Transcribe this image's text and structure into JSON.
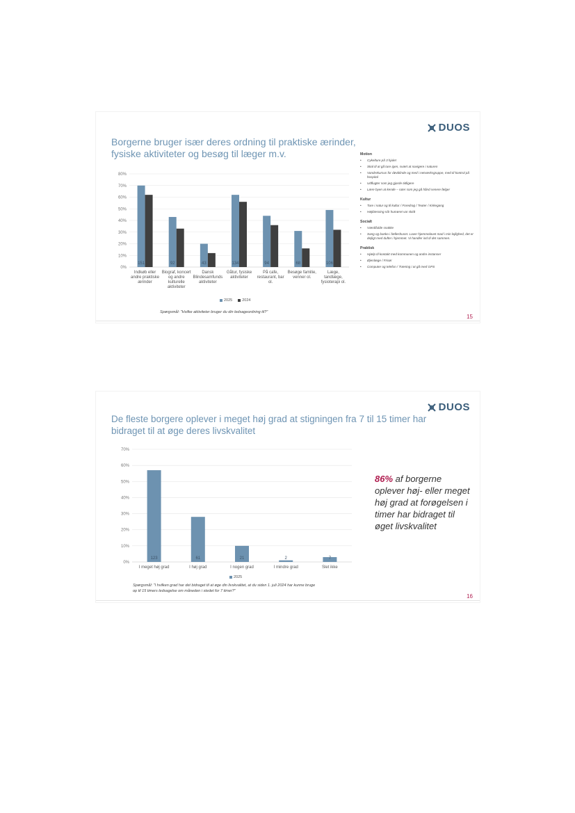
{
  "slide1": {
    "brand": "DUOS",
    "title_lines": [
      "Borgerne bruger især deres ordning til praktiske ærinder,",
      "fysiske aktiviteter og besøg til læger m.v."
    ],
    "question": "Spørgsmål: \"Hvilke aktiviteter bruger du din ledsageordning til?\"",
    "page_number": "15",
    "legend": [
      "2025",
      "2024"
    ],
    "sidebar": [
      {
        "title": "Motion",
        "items": [
          "Cykelture på 3 hjulet",
          "Skal til at gå ture igen, svært at navigere i naturen",
          "Vandrekursus for døvblinde og med i netværksgruppe, med til kontrol på hospital",
          "Udflugter som jeg gjorde tidligere",
          "Lære byen at kende – ruter som jeg gå hånd senere følger"
        ]
      },
      {
        "title": "Kultur",
        "items": [
          "Ture i natur og til kultur / Foredrag / Teater / Kirkegang",
          "Højtlæsning når humøret var skidt"
        ]
      },
      {
        "title": "Socialt",
        "items": [
          "Værdifulde snakke",
          "Sang og banko i fælleshuset. Laver hjemmelavet mad i min lejlighed, det er dejligt med dufter i hjemmet. Vi handler ind til det sammen."
        ]
      },
      {
        "title": "Praktisk",
        "items": [
          "Hjælp til kontakt med kommunen og andre instanser",
          "Øjenlæge / Frisør",
          "Computer og telefon / Træning i at gå med GPS"
        ]
      }
    ]
  },
  "slide2": {
    "brand": "DUOS",
    "title_lines": [
      "De fleste borgere oplever i meget høj grad at stigningen fra 7 til 15 timer har",
      "bidraget til at øge deres livskvalitet"
    ],
    "highlight_pct": "86%",
    "highlight_text": " af borgerne oplever høj- eller meget høj grad at forøgelsen i timer har bidraget til øget livskvalitet",
    "question_lines": [
      "Spørgsmål: \"I hvilken grad har det bidraget til at øge din livskvalitet, at du siden 1. juli 2024 har kunne bruge",
      "op til 15 timers ledsagelse om måneden i stedet for 7 timer?\""
    ],
    "page_number": "16",
    "legend": [
      "2025"
    ]
  },
  "colors": {
    "c2025": "#6d92b0",
    "c2024": "#3f3f3f",
    "accent": "#b01e50"
  },
  "chart_data": [
    {
      "type": "bar",
      "categories": [
        [
          "Indkøb eller",
          "andre praktiske",
          "ærinder"
        ],
        [
          "Biograf, koncert",
          "og andre",
          "kulturelle",
          "aktiviteter"
        ],
        [
          "Dansk",
          "Blindesamfunds",
          "aktiviteter"
        ],
        [
          "Gåtur, fysiske",
          "aktiviteter"
        ],
        [
          "På cafe,",
          "restaurant, bar",
          "ol."
        ],
        [
          "Besøge familie,",
          "venner ol."
        ],
        [
          "Læge,",
          "tandlæge,",
          "fysioterapi ol."
        ]
      ],
      "series": [
        {
          "name": "2025",
          "values": [
            70,
            43,
            20,
            62,
            44,
            31,
            49
          ],
          "labels": [
            "151",
            "92",
            "43",
            "134",
            "94",
            "68",
            "106"
          ]
        },
        {
          "name": "2024",
          "values": [
            62,
            33,
            12,
            56,
            36,
            16,
            32
          ]
        }
      ],
      "yticks": [
        "0%",
        "10%",
        "20%",
        "30%",
        "40%",
        "50%",
        "60%",
        "70%",
        "80%"
      ],
      "ylim": [
        0,
        80
      ]
    },
    {
      "type": "bar",
      "categories": [
        "I meget høj grad",
        "I høj grad",
        "I nogen grad",
        "I mindre grad",
        "Slet ikke"
      ],
      "series": [
        {
          "name": "2025",
          "values": [
            57,
            28,
            10,
            1,
            3
          ],
          "labels": [
            "123",
            "61",
            "21",
            "2",
            "7"
          ]
        }
      ],
      "yticks": [
        "0%",
        "10%",
        "20%",
        "30%",
        "40%",
        "50%",
        "60%",
        "70%"
      ],
      "ylim": [
        0,
        70
      ]
    }
  ]
}
